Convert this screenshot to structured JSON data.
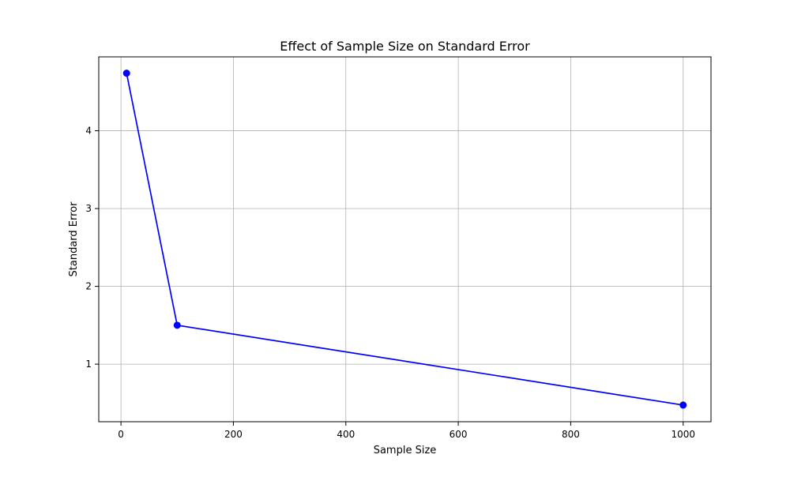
{
  "chart_data": {
    "type": "line",
    "title": "Effect of Sample Size on Standard Error",
    "xlabel": "Sample Size",
    "ylabel": "Standard Error",
    "x": [
      10,
      100,
      1000
    ],
    "series": [
      {
        "name": "",
        "values": [
          4.74,
          1.5,
          0.474
        ],
        "color": "#0000ff",
        "marker": "circle"
      }
    ],
    "xlim": [
      -39.5,
      1049.5
    ],
    "ylim": [
      0.26,
      4.95
    ],
    "xticks": [
      0,
      200,
      400,
      600,
      800,
      1000
    ],
    "xtick_labels": [
      "0",
      "200",
      "400",
      "600",
      "800",
      "1000"
    ],
    "yticks": [
      1,
      2,
      3,
      4
    ],
    "ytick_labels": [
      "1",
      "2",
      "3",
      "4"
    ],
    "grid": true,
    "grid_color": "#b0b0b0",
    "axis_color": "#000000",
    "legend": "none"
  }
}
